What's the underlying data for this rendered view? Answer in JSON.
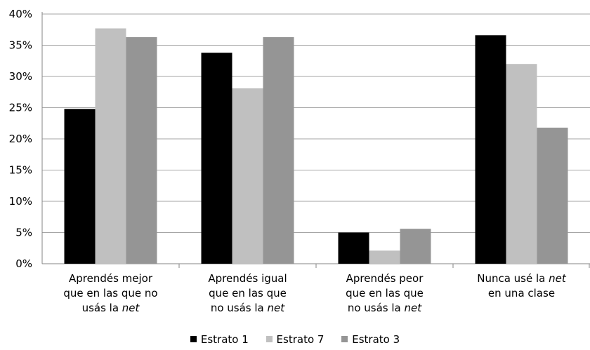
{
  "chart_data": {
    "type": "bar",
    "categories": [
      [
        "Aprendés mejor",
        "que en las que no",
        "usás la |net|"
      ],
      [
        "Aprendés igual",
        "que en las que",
        "no usás la |net|"
      ],
      [
        "Aprendés peor",
        "que en las que",
        "no usás la |net|"
      ],
      [
        "Nunca usé la |net|",
        "en una clase"
      ]
    ],
    "series": [
      {
        "name": "Estrato 1",
        "color": "#000000",
        "values": [
          24.8,
          33.8,
          5.0,
          36.6
        ]
      },
      {
        "name": "Estrato 7",
        "color": "#c0c0c0",
        "values": [
          37.7,
          28.1,
          2.1,
          32.0
        ]
      },
      {
        "name": "Estrato 3",
        "color": "#959595",
        "values": [
          36.3,
          36.3,
          5.6,
          21.8
        ]
      }
    ],
    "yticks": [
      "0%",
      "5%",
      "10%",
      "15%",
      "20%",
      "25%",
      "30%",
      "35%",
      "40%"
    ],
    "ylim": [
      0,
      40
    ],
    "grid": true,
    "legend_position": "bottom"
  }
}
